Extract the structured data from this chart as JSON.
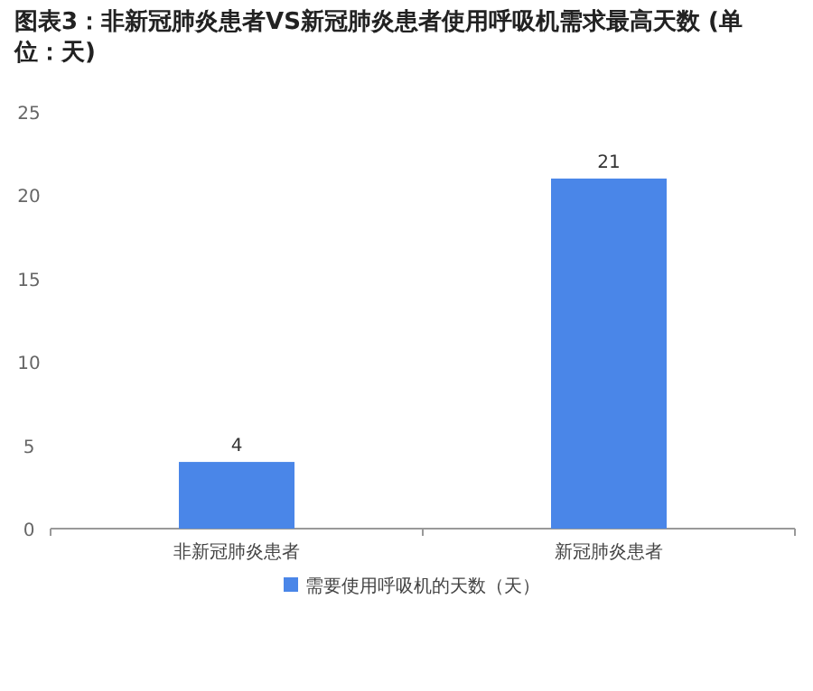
{
  "chart_data": {
    "type": "bar",
    "title": "图表3：非新冠肺炎患者VS新冠肺炎患者使用呼吸机需求最高天数 (单位：天)",
    "categories": [
      "非新冠肺炎患者",
      "新冠肺炎患者"
    ],
    "series": [
      {
        "name": "需要使用呼吸机的天数（天）",
        "color": "#4a86e8",
        "values": [
          4,
          21
        ]
      }
    ],
    "ylim": [
      0,
      25
    ],
    "yticks": [
      0,
      5,
      10,
      15,
      20,
      25
    ],
    "data_labels": true,
    "legend": "bottom"
  }
}
